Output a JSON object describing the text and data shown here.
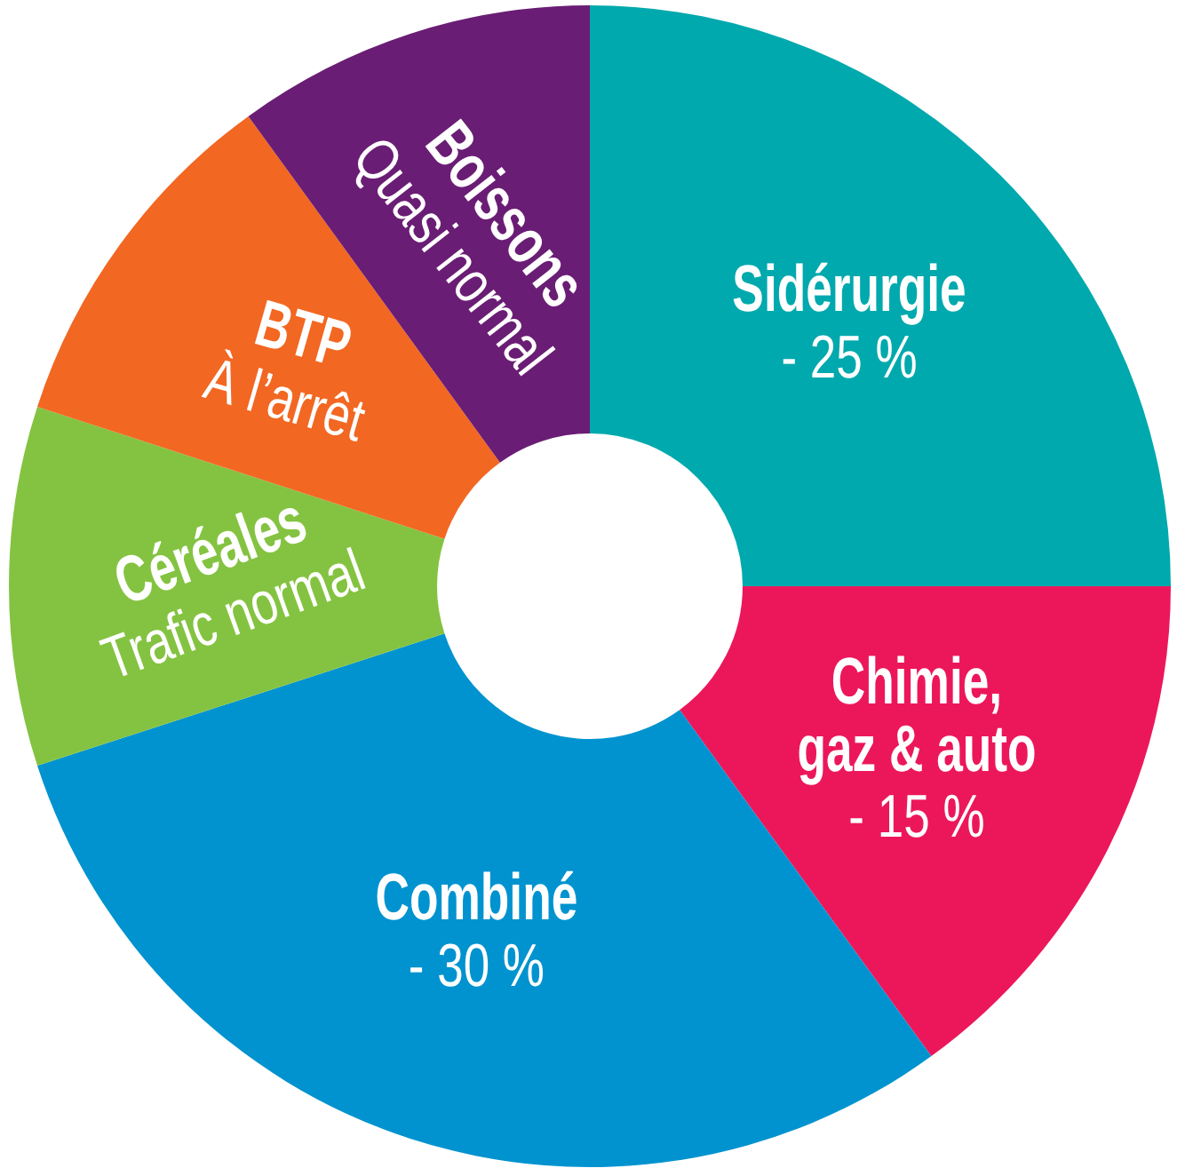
{
  "chart_data": {
    "type": "donut",
    "categories": [
      "Sidérurgie",
      "Chimie, gaz & auto",
      "Combiné",
      "Céréales",
      "BTP",
      "Boissons"
    ],
    "values": [
      25,
      15,
      30,
      10,
      10,
      10
    ],
    "colors": [
      "#00a9ad",
      "#ec175b",
      "#0093cf",
      "#84c341",
      "#f26722",
      "#6a1d74"
    ],
    "annotations": [
      {
        "text": "- 25 %",
        "x": "Sidérurgie"
      },
      {
        "text": "- 15 %",
        "x": "Chimie, gaz & auto"
      },
      {
        "text": "- 30 %",
        "x": "Combiné"
      },
      {
        "text": "Trafic normal",
        "x": "Céréales"
      },
      {
        "text": "À l’arrêt",
        "x": "BTP"
      },
      {
        "text": "Quasi normal",
        "x": "Boissons"
      }
    ]
  }
}
